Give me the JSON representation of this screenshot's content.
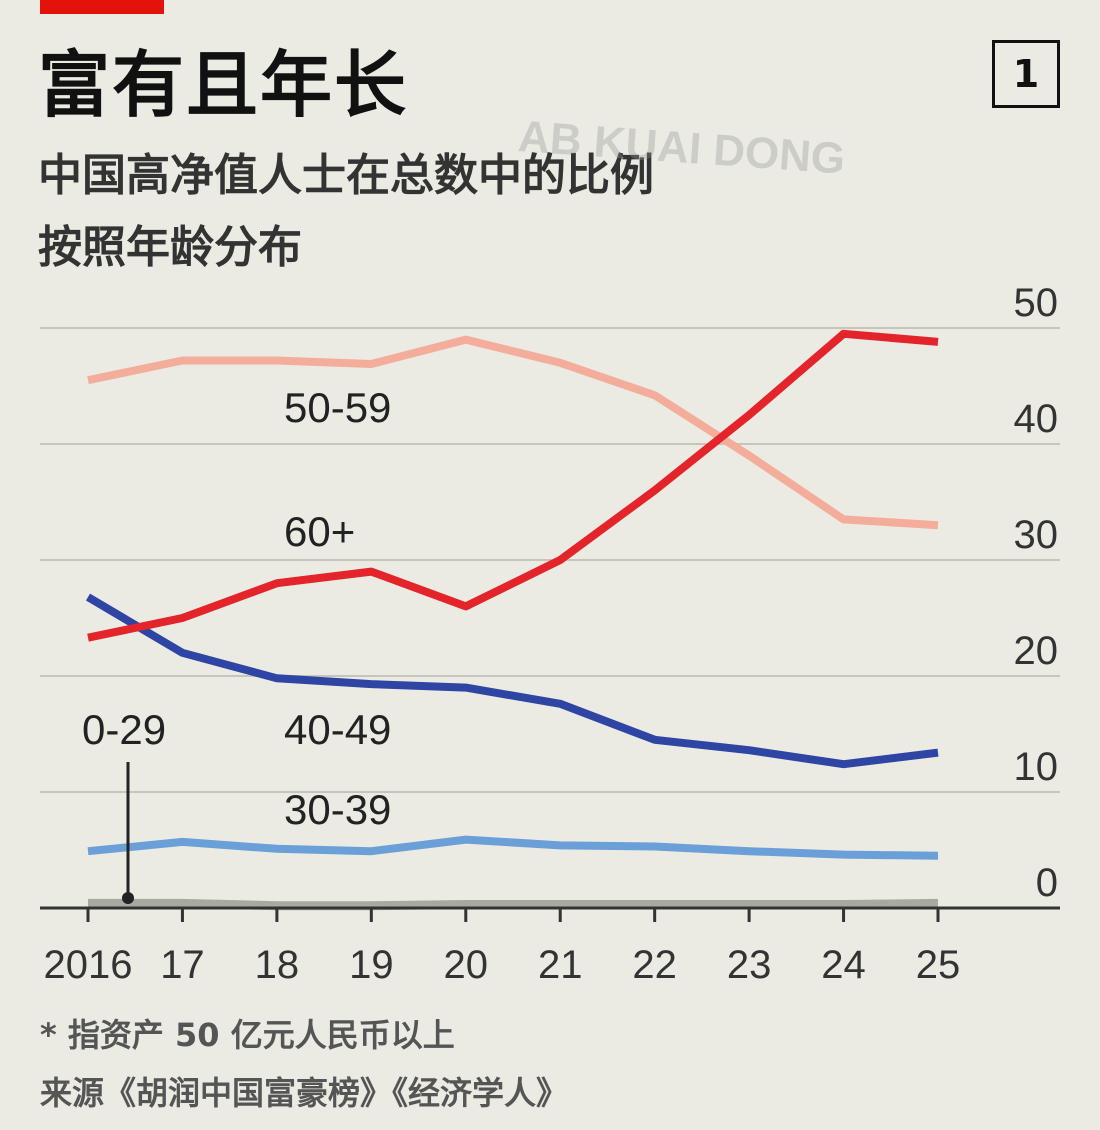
{
  "header": {
    "title": "富有且年长",
    "chart_number": "1",
    "subtitle_line1": "中国高净值人士在总数中的比例",
    "subtitle_line2": "按照年龄分布",
    "watermark": "AB KUAI DONG"
  },
  "footer": {
    "note": "* 指资产 50 亿元人民币以上",
    "source": "来源《胡润中国富豪榜》《经济学人》"
  },
  "colors": {
    "background": "#ebebe3",
    "brand_red": "#e3120b"
  },
  "chart_data": {
    "type": "line",
    "x": [
      2016,
      2017,
      2018,
      2019,
      2020,
      2021,
      2022,
      2023,
      2024,
      2025
    ],
    "x_tick_labels": [
      "2016",
      "17",
      "18",
      "19",
      "20",
      "21",
      "22",
      "23",
      "24",
      "25"
    ],
    "y_ticks": [
      0,
      10,
      20,
      30,
      40,
      50
    ],
    "ylim": [
      0,
      50
    ],
    "y_axis_side": "right",
    "grid": true,
    "series": [
      {
        "name": "50-59",
        "color": "#f4ad9b",
        "values": [
          45.5,
          47.2,
          47.2,
          46.9,
          49.0,
          47.0,
          44.2,
          39.0,
          33.5,
          33.0
        ]
      },
      {
        "name": "60+",
        "color": "#e3242b",
        "values": [
          23.3,
          25.0,
          28.0,
          29.0,
          26.0,
          30.0,
          36.0,
          42.5,
          49.5,
          48.8
        ]
      },
      {
        "name": "40-49",
        "color": "#2e45a3",
        "values": [
          26.8,
          22.0,
          19.8,
          19.3,
          19.0,
          17.6,
          14.5,
          13.6,
          12.4,
          13.4
        ]
      },
      {
        "name": "30-39",
        "color": "#6a9fd8",
        "values": [
          4.9,
          5.7,
          5.1,
          4.9,
          5.9,
          5.4,
          5.3,
          4.9,
          4.6,
          4.5
        ]
      },
      {
        "name": "0-29",
        "color": "#a9a9a0",
        "values": [
          0.4,
          0.4,
          0.2,
          0.2,
          0.3,
          0.3,
          0.3,
          0.3,
          0.3,
          0.4
        ]
      }
    ]
  }
}
